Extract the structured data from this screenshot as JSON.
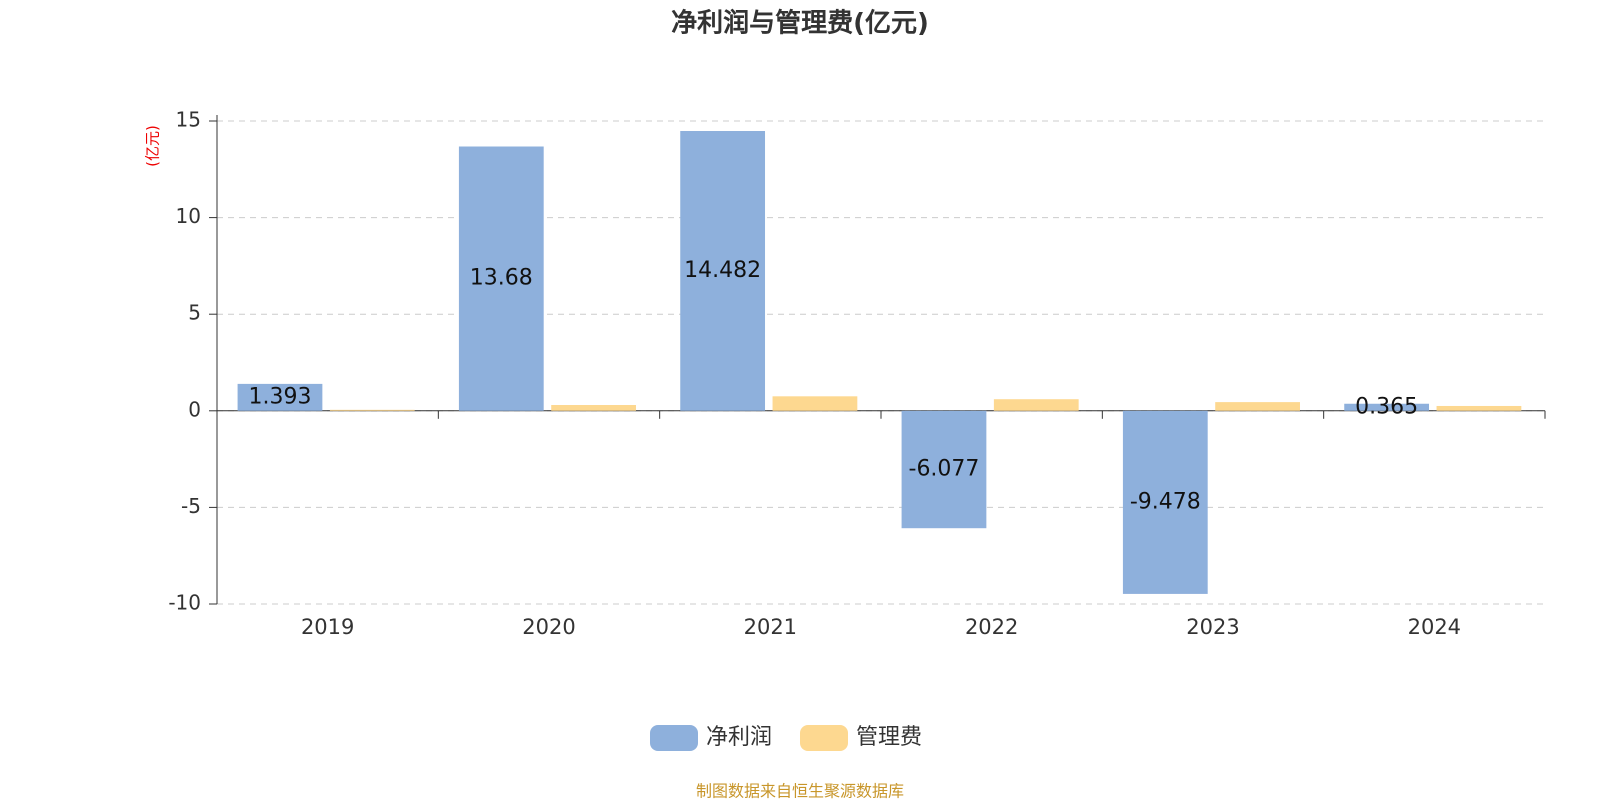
{
  "chart_data": {
    "type": "bar",
    "title": "净利润与管理费(亿元)",
    "y_label": "(亿元)",
    "categories": [
      "2019",
      "2020",
      "2021",
      "2022",
      "2023",
      "2024"
    ],
    "series": [
      {
        "name": "净利润",
        "color": "#8eb0dc",
        "values": [
          1.393,
          13.68,
          14.482,
          -6.077,
          -9.478,
          0.365
        ],
        "show_labels": true
      },
      {
        "name": "管理费",
        "color": "#fdd890",
        "values": [
          0.05,
          0.3,
          0.75,
          0.6,
          0.45,
          0.25
        ],
        "show_labels": false
      }
    ],
    "ylim": [
      -10,
      15
    ],
    "yticks": [
      -10,
      -5,
      0,
      5,
      10,
      15
    ],
    "grid": true,
    "legend": "bottom",
    "source": "制图数据来自恒生聚源数据库"
  }
}
